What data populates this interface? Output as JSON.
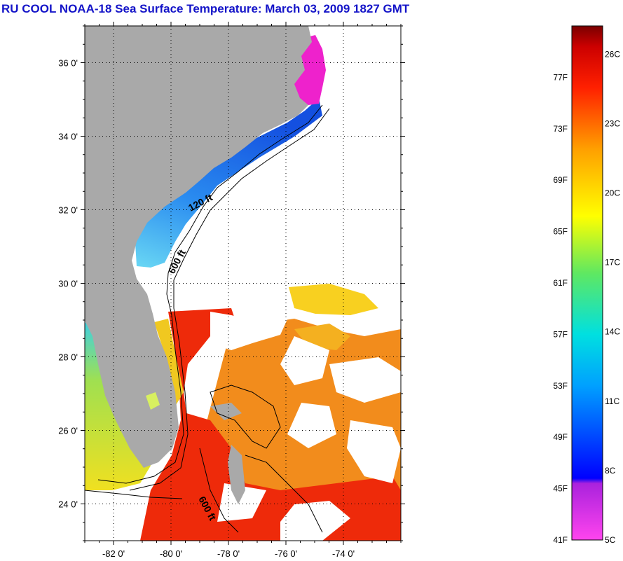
{
  "title": "RU COOL  NOAA-18  Sea Surface Temperature:  March 03, 2009 1827 GMT",
  "map": {
    "lon_range": [
      -83.0,
      -72.0
    ],
    "lat_range": [
      23.0,
      37.0
    ],
    "lat_ticks": [
      {
        "value": 36,
        "label": "36 0'"
      },
      {
        "value": 34,
        "label": "34 0'"
      },
      {
        "value": 32,
        "label": "32 0'"
      },
      {
        "value": 30,
        "label": "30 0'"
      },
      {
        "value": 28,
        "label": "28 0'"
      },
      {
        "value": 26,
        "label": "26 0'"
      },
      {
        "value": 24,
        "label": "24 0'"
      }
    ],
    "lon_ticks": [
      {
        "value": -82,
        "label": "-82 0'"
      },
      {
        "value": -80,
        "label": "-80 0'"
      },
      {
        "value": -78,
        "label": "-78 0'"
      },
      {
        "value": -76,
        "label": "-76 0'"
      },
      {
        "value": -74,
        "label": "-74 0'"
      }
    ],
    "contour_labels": [
      "120 ft",
      "600 ft",
      "600 ft"
    ],
    "colors": {
      "land": "#a9a9a9",
      "cloud": "#ffffff",
      "gulf_stream": "#ee2a0a",
      "sargasso": "#f28c1c",
      "shelf_cold": "#1e6cf0",
      "shelf_cool": "#4ab8f0",
      "sounds": "#ee22cc",
      "gulf_west": "#e6dc1e"
    }
  },
  "colorbar": {
    "f_labels": [
      "77F",
      "73F",
      "69F",
      "65F",
      "61F",
      "57F",
      "53F",
      "49F",
      "45F",
      "41F"
    ],
    "c_labels": [
      "26C",
      "23C",
      "20C",
      "17C",
      "14C",
      "11C",
      "8C",
      "5C"
    ],
    "range_f": [
      41,
      81
    ],
    "stops": [
      "#ff44ee",
      "#9922dd",
      "#0000ff",
      "#00a0ff",
      "#00e0e0",
      "#60e860",
      "#ffff00",
      "#ffa000",
      "#ff2000",
      "#cc0000",
      "#7a0000"
    ]
  }
}
